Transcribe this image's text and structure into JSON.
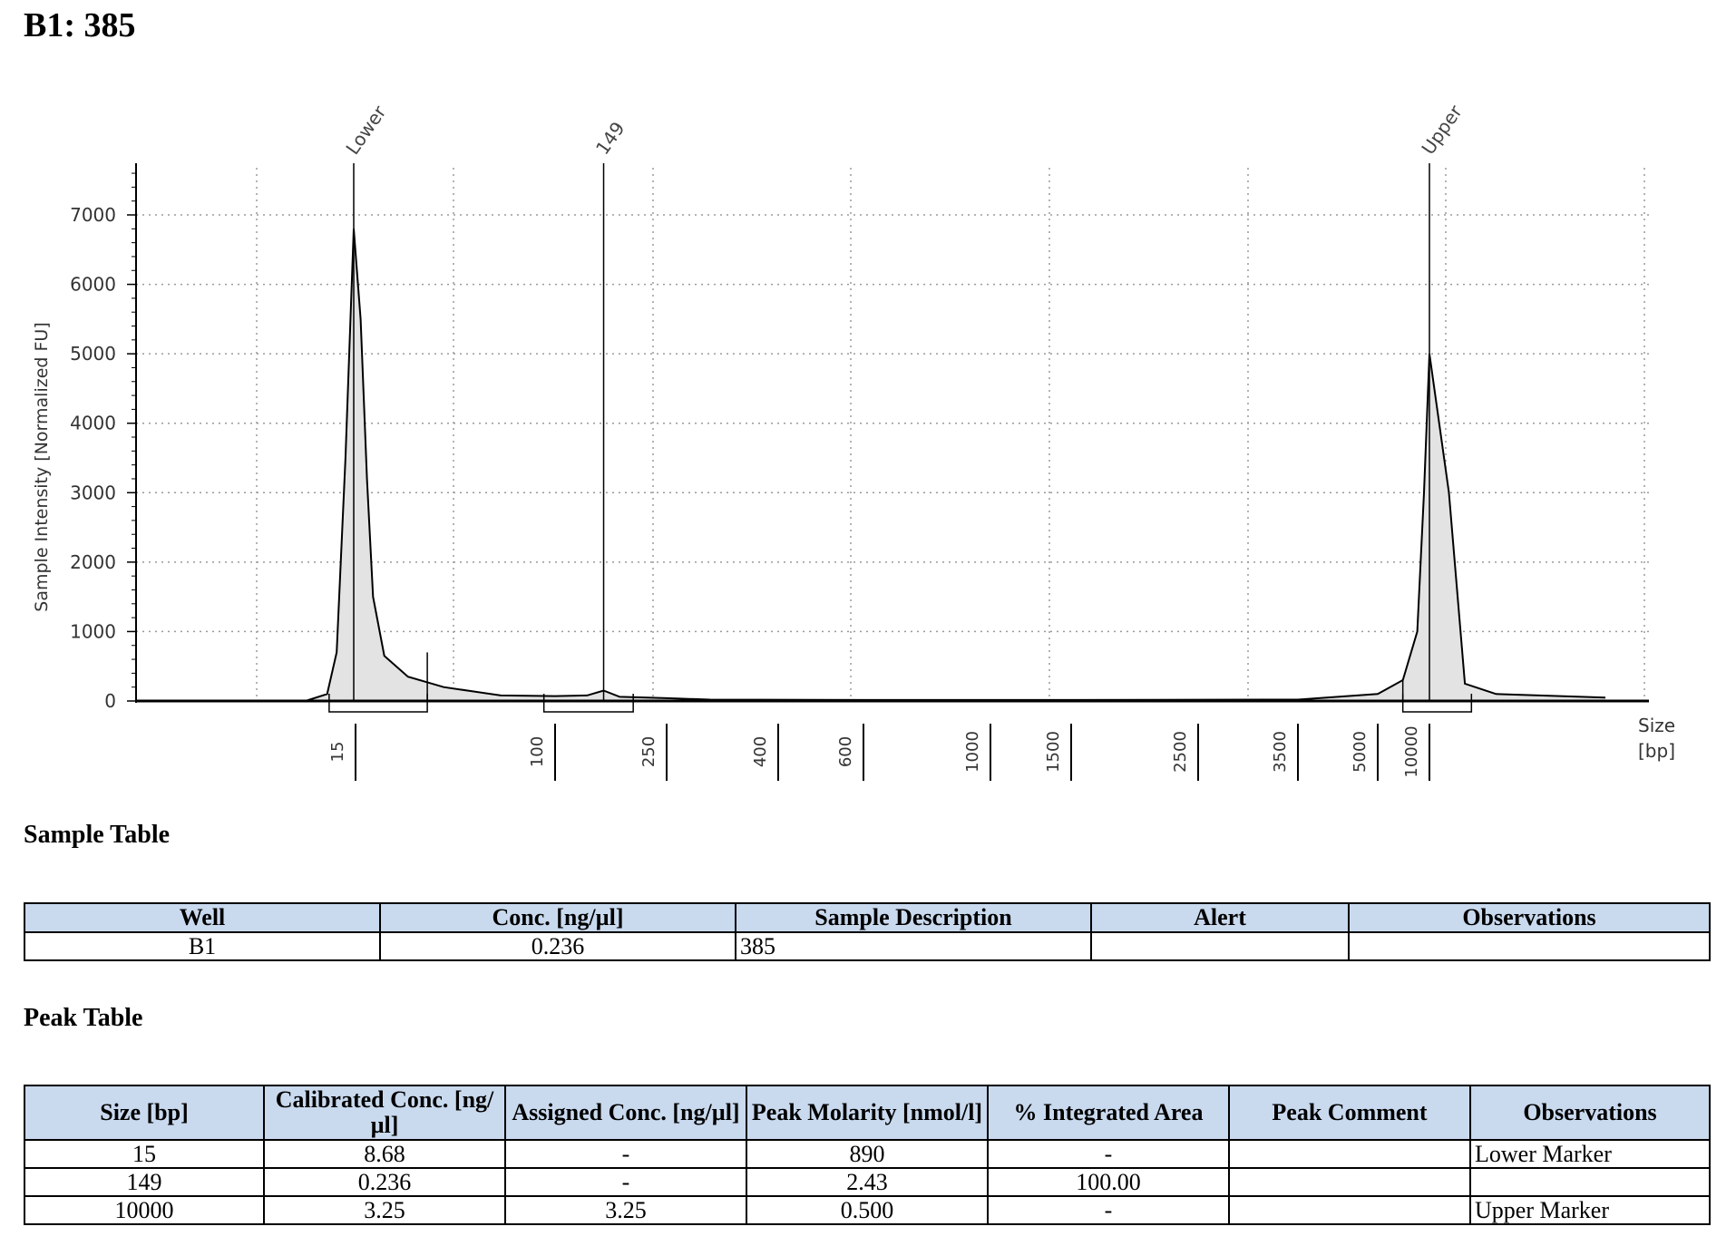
{
  "title": "B1: 385",
  "chart_data": {
    "type": "line",
    "ylabel": "Sample Intensity [Normalized FU]",
    "xlabel_line1": "Size",
    "xlabel_line2": "[bp]",
    "ylim": [
      0,
      7700
    ],
    "y_ticks": [
      0,
      1000,
      2000,
      3000,
      4000,
      5000,
      6000,
      7000
    ],
    "x_scale": "ladder (non-linear)",
    "x_ticks": [
      "15",
      "100",
      "250",
      "400",
      "600",
      "1000",
      "1500",
      "2500",
      "3500",
      "5000",
      "10000"
    ],
    "grid": true,
    "peak_labels": [
      "Lower",
      "149",
      "Upper"
    ],
    "series": [
      {
        "x_bp": [
          7,
          10,
          12,
          13,
          14,
          15,
          16,
          17,
          18,
          20,
          25,
          35,
          60,
          100,
          130,
          149,
          170,
          250,
          300,
          600,
          1500,
          3500,
          5000,
          7000,
          8500,
          9300,
          10000,
          10800,
          11500,
          13000,
          20000
        ],
        "y": [
          0,
          0,
          100,
          700,
          3500,
          6800,
          5500,
          3200,
          1500,
          650,
          350,
          200,
          80,
          70,
          80,
          150,
          60,
          40,
          20,
          15,
          15,
          20,
          100,
          300,
          1000,
          3000,
          5000,
          3000,
          250,
          100,
          50
        ]
      }
    ]
  },
  "sample_table": {
    "title": "Sample Table",
    "headers": [
      "Well",
      "Conc. [ng/µl]",
      "Sample Description",
      "Alert",
      "Observations"
    ],
    "rows": [
      [
        "B1",
        "0.236",
        "385",
        "",
        ""
      ]
    ]
  },
  "peak_table": {
    "title": "Peak Table",
    "headers": [
      "Size [bp]",
      "Calibrated Conc. [ng/µl]",
      "Assigned Conc. [ng/µl]",
      "Peak Molarity [nmol/l]",
      "% Integrated Area",
      "Peak Comment",
      "Observations"
    ],
    "rows": [
      [
        "15",
        "8.68",
        "-",
        "890",
        "-",
        "",
        "Lower Marker"
      ],
      [
        "149",
        "0.236",
        "-",
        "2.43",
        "100.00",
        "",
        ""
      ],
      [
        "10000",
        "3.25",
        "3.25",
        "0.500",
        "-",
        "",
        "Upper Marker"
      ]
    ]
  },
  "colors": {
    "fill": "#e3e3e3",
    "line": "#000000",
    "grid": "#9a9a9a",
    "header_bg": "#c9d9ee"
  }
}
